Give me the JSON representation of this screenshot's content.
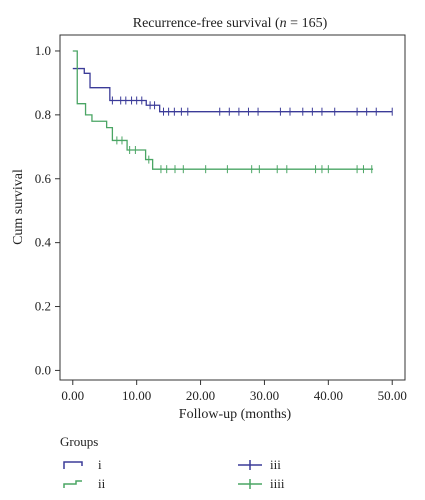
{
  "chart_data": {
    "type": "line",
    "subtype": "kaplan-meier",
    "title": "Recurrence-free survival (",
    "title_n_symbol": "n",
    "title_tail": " = 165)",
    "xlabel": "Follow-up (months)",
    "ylabel": "Cum survival",
    "xlim": [
      -2,
      52
    ],
    "ylim": [
      -0.03,
      1.05
    ],
    "x_ticks": [
      "0.00",
      "10.00",
      "20.00",
      "30.00",
      "40.00",
      "50.00"
    ],
    "x_tick_values": [
      0,
      10,
      20,
      30,
      40,
      50
    ],
    "y_ticks": [
      "0.0",
      "0.2",
      "0.4",
      "0.6",
      "0.8",
      "1.0"
    ],
    "y_tick_values": [
      0,
      0.2,
      0.4,
      0.6,
      0.8,
      1.0
    ],
    "grid": false,
    "legend_title": "Groups",
    "legend_placement": "bottom",
    "series": [
      {
        "name": "i",
        "color": "#3b3b98",
        "steps": [
          [
            0,
            0.945
          ],
          [
            1.8,
            0.93
          ],
          [
            2.7,
            0.885
          ],
          [
            5.8,
            0.845
          ],
          [
            11.5,
            0.83
          ],
          [
            13.6,
            0.81
          ],
          [
            50,
            0.81
          ]
        ],
        "censored": [
          [
            6.2,
            0.845
          ],
          [
            7.5,
            0.845
          ],
          [
            8.3,
            0.845
          ],
          [
            9.2,
            0.845
          ],
          [
            10.0,
            0.845
          ],
          [
            10.8,
            0.845
          ],
          [
            12.1,
            0.83
          ],
          [
            12.8,
            0.83
          ],
          [
            14.2,
            0.81
          ],
          [
            15.0,
            0.81
          ],
          [
            15.9,
            0.81
          ],
          [
            17.0,
            0.81
          ],
          [
            18.0,
            0.81
          ],
          [
            23.0,
            0.81
          ],
          [
            24.5,
            0.81
          ],
          [
            26.0,
            0.81
          ],
          [
            27.5,
            0.81
          ],
          [
            29.0,
            0.81
          ],
          [
            32.5,
            0.81
          ],
          [
            34.0,
            0.81
          ],
          [
            36.0,
            0.81
          ],
          [
            37.5,
            0.81
          ],
          [
            39.0,
            0.81
          ],
          [
            41.0,
            0.81
          ],
          [
            44.5,
            0.81
          ],
          [
            46.0,
            0.81
          ],
          [
            47.5,
            0.81
          ],
          [
            50.0,
            0.81
          ]
        ]
      },
      {
        "name": "ii",
        "color": "#4aa564",
        "steps": [
          [
            0,
            1.0
          ],
          [
            0.7,
            0.835
          ],
          [
            2.0,
            0.8
          ],
          [
            3.0,
            0.78
          ],
          [
            5.3,
            0.76
          ],
          [
            6.2,
            0.72
          ],
          [
            8.5,
            0.69
          ],
          [
            11.4,
            0.66
          ],
          [
            12.5,
            0.63
          ],
          [
            47,
            0.63
          ]
        ],
        "censored": [
          [
            6.9,
            0.72
          ],
          [
            7.7,
            0.72
          ],
          [
            8.9,
            0.69
          ],
          [
            9.8,
            0.69
          ],
          [
            11.9,
            0.66
          ],
          [
            13.8,
            0.63
          ],
          [
            14.7,
            0.63
          ],
          [
            16.0,
            0.63
          ],
          [
            17.3,
            0.63
          ],
          [
            20.8,
            0.63
          ],
          [
            24.2,
            0.63
          ],
          [
            28.0,
            0.63
          ],
          [
            29.2,
            0.63
          ],
          [
            32.0,
            0.63
          ],
          [
            33.5,
            0.63
          ],
          [
            38.0,
            0.63
          ],
          [
            39.0,
            0.63
          ],
          [
            40.0,
            0.63
          ],
          [
            44.5,
            0.63
          ],
          [
            45.5,
            0.63
          ],
          [
            46.8,
            0.63
          ]
        ]
      }
    ],
    "legend": [
      {
        "label": "i",
        "color": "#3b3b98",
        "symbol": "step"
      },
      {
        "label": "ii",
        "color": "#4aa564",
        "symbol": "step"
      },
      {
        "label": "iii",
        "color": "#3b3b98",
        "symbol": "cross"
      },
      {
        "label": "iiii",
        "color": "#4aa564",
        "symbol": "cross"
      }
    ]
  }
}
